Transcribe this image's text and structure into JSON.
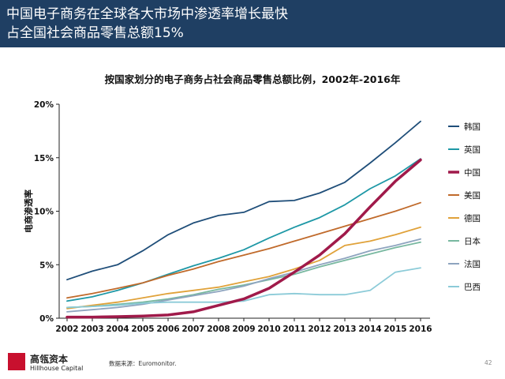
{
  "slide": {
    "title": "中国电子商务在全球各大市场中渗透率增长最快\n占全国社会商品零售总额15%",
    "brand_cn": "高瓴资本",
    "brand_en": "Hillhouse Capital",
    "source": "数据来源：Euromonitor.",
    "page_number": "42",
    "header_color": "#1f3f63",
    "logo_color": "#c8102e"
  },
  "chart_data": {
    "type": "line",
    "title": "按国家划分的电子商务占社会商品零售总额比例，2002年-2016年",
    "xlabel": "",
    "ylabel": "电商渗透率",
    "x": [
      "2002",
      "2003",
      "2004",
      "2005",
      "2006",
      "2007",
      "2008",
      "2009",
      "2010",
      "2011",
      "2012",
      "2013",
      "2014",
      "2015",
      "2016"
    ],
    "ylim": [
      0,
      20
    ],
    "yticks": [
      0,
      5,
      10,
      15,
      20
    ],
    "ytick_labels": [
      "0%",
      "5%",
      "10%",
      "15%",
      "20%"
    ],
    "legend_position": "right",
    "series": [
      {
        "name": "韩国",
        "color": "#1f4e79",
        "values": [
          3.6,
          4.4,
          5.0,
          6.3,
          7.8,
          8.9,
          9.6,
          9.9,
          10.9,
          11.0,
          11.7,
          12.7,
          14.5,
          16.4,
          18.4
        ]
      },
      {
        "name": "英国",
        "color": "#1e98a6",
        "values": [
          1.6,
          2.0,
          2.6,
          3.3,
          4.1,
          4.9,
          5.6,
          6.4,
          7.5,
          8.5,
          9.4,
          10.6,
          12.1,
          13.3,
          14.9
        ]
      },
      {
        "name": "中国",
        "color": "#a01a4a",
        "values": [
          0.1,
          0.1,
          0.15,
          0.2,
          0.3,
          0.6,
          1.2,
          1.8,
          2.8,
          4.3,
          5.9,
          7.9,
          10.4,
          12.8,
          14.8
        ]
      },
      {
        "name": "美国",
        "color": "#c06a2b",
        "values": [
          1.9,
          2.3,
          2.8,
          3.3,
          4.0,
          4.6,
          5.3,
          5.9,
          6.5,
          7.2,
          7.9,
          8.6,
          9.3,
          10.0,
          10.8
        ]
      },
      {
        "name": "德国",
        "color": "#e0a23a",
        "values": [
          0.9,
          1.2,
          1.5,
          1.9,
          2.3,
          2.6,
          2.9,
          3.4,
          3.9,
          4.6,
          5.4,
          6.8,
          7.2,
          7.8,
          8.5
        ]
      },
      {
        "name": "日本",
        "color": "#78b8a0",
        "values": [
          1.0,
          1.1,
          1.3,
          1.5,
          1.8,
          2.2,
          2.7,
          3.1,
          3.6,
          4.1,
          4.8,
          5.4,
          6.0,
          6.6,
          7.1
        ]
      },
      {
        "name": "法国",
        "color": "#8ea4bf",
        "values": [
          0.6,
          0.8,
          1.0,
          1.3,
          1.7,
          2.1,
          2.5,
          3.0,
          3.7,
          4.3,
          5.0,
          5.6,
          6.3,
          6.8,
          7.4
        ]
      },
      {
        "name": "巴西",
        "color": "#8ccbd8",
        "values": [
          1.0,
          1.1,
          1.2,
          1.4,
          1.5,
          1.5,
          1.5,
          1.6,
          2.2,
          2.3,
          2.2,
          2.2,
          2.6,
          4.3,
          4.7
        ]
      }
    ]
  }
}
